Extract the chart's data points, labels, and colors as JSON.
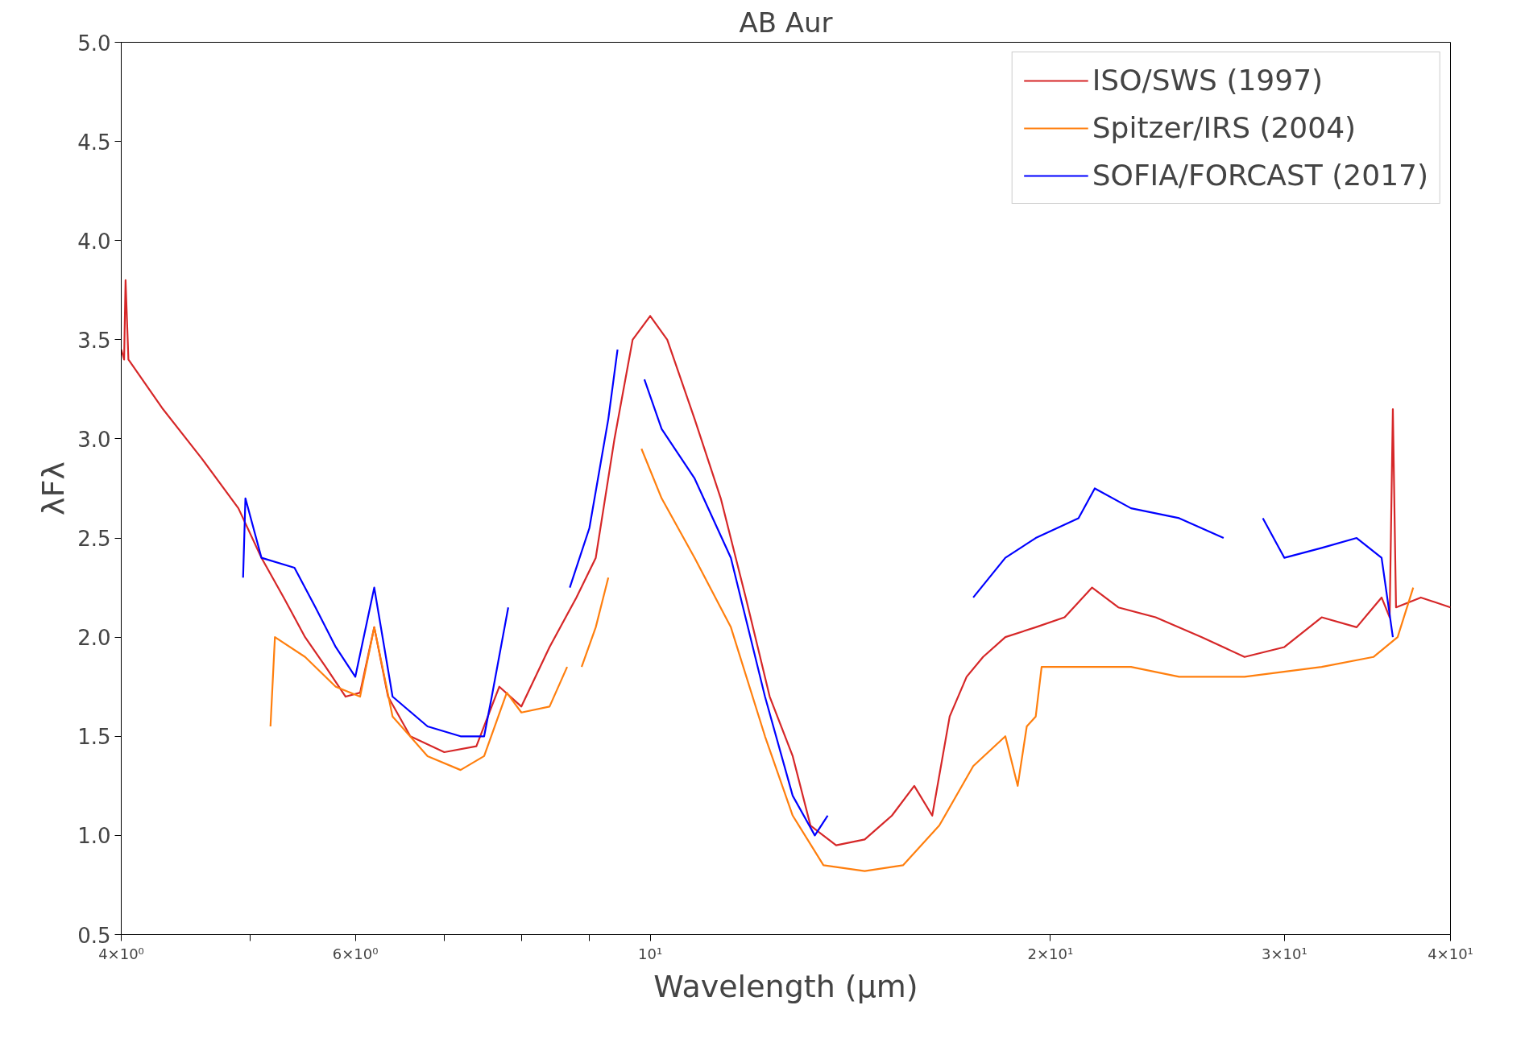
{
  "chart_data": {
    "type": "line",
    "title": "AB Aur",
    "xlabel": "Wavelength (μm)",
    "ylabel": "λFλ",
    "log": "x",
    "legend": "top right",
    "grid": false,
    "marker": "none",
    "line_style": "solid",
    "xlim": [
      4,
      40
    ],
    "ylim": [
      0.5,
      5.0
    ],
    "xticks": [
      {
        "value": 4,
        "label": "4×10⁰"
      },
      {
        "value": 5,
        "label": null
      },
      {
        "value": 6,
        "label": "6×10⁰"
      },
      {
        "value": 7,
        "label": null
      },
      {
        "value": 8,
        "label": null
      },
      {
        "value": 9,
        "label": null
      },
      {
        "value": 10,
        "label": "10¹"
      },
      {
        "value": 20,
        "label": "2×10¹"
      },
      {
        "value": 30,
        "label": "3×10¹"
      },
      {
        "value": 40,
        "label": "4×10¹"
      }
    ],
    "yticks": [
      {
        "value": 0.5,
        "label": "0.5"
      },
      {
        "value": 1.0,
        "label": "1.0"
      },
      {
        "value": 1.5,
        "label": "1.5"
      },
      {
        "value": 2.0,
        "label": "2.0"
      },
      {
        "value": 2.5,
        "label": "2.5"
      },
      {
        "value": 3.0,
        "label": "3.0"
      },
      {
        "value": 3.5,
        "label": "3.5"
      },
      {
        "value": 4.0,
        "label": "4.0"
      },
      {
        "value": 4.5,
        "label": "4.5"
      },
      {
        "value": 5.0,
        "label": "5.0"
      }
    ],
    "series": [
      {
        "name": "ISO/SWS (1997)",
        "color": "#d62728",
        "x": [
          4.0,
          4.02,
          4.03,
          4.05,
          4.3,
          4.6,
          4.9,
          5.1,
          5.3,
          5.5,
          5.7,
          5.9,
          6.05,
          6.2,
          6.35,
          6.6,
          7.0,
          7.4,
          7.7,
          8.0,
          8.4,
          8.8,
          9.1,
          9.4,
          9.7,
          10.0,
          10.3,
          10.8,
          11.3,
          11.8,
          12.3,
          12.8,
          13.2,
          13.8,
          14.5,
          15.2,
          15.8,
          16.3,
          16.8,
          17.3,
          17.8,
          18.5,
          19.5,
          20.5,
          21.5,
          22.5,
          24,
          26,
          28,
          30,
          32,
          34,
          35.5,
          36.0,
          36.2,
          36.4,
          38,
          40
        ],
        "values": [
          3.45,
          3.4,
          3.8,
          3.4,
          3.15,
          2.9,
          2.65,
          2.4,
          2.2,
          2.0,
          1.85,
          1.7,
          1.72,
          2.05,
          1.7,
          1.5,
          1.42,
          1.45,
          1.75,
          1.65,
          1.95,
          2.2,
          2.4,
          3.0,
          3.5,
          3.62,
          3.5,
          3.1,
          2.7,
          2.2,
          1.7,
          1.4,
          1.05,
          0.95,
          0.98,
          1.1,
          1.25,
          1.1,
          1.6,
          1.8,
          1.9,
          2.0,
          2.05,
          2.1,
          2.25,
          2.15,
          2.1,
          2.0,
          1.9,
          1.95,
          2.1,
          2.05,
          2.2,
          2.1,
          3.15,
          2.15,
          2.2,
          2.15
        ]
      },
      {
        "name": "Spitzer/IRS (2004)",
        "color": "#ff7f0e",
        "x": [
          5.18,
          5.22,
          5.5,
          5.8,
          6.05,
          6.2,
          6.4,
          6.8,
          7.2,
          7.5,
          7.8,
          8.0,
          8.4,
          8.66,
          8.77,
          8.88,
          9.1,
          9.3,
          9.6,
          9.85,
          10.2,
          10.8,
          11.5,
          12.2,
          12.8,
          13.5,
          14.5,
          15.5,
          16.5,
          17.5,
          18.5,
          18.9,
          19.2,
          19.5,
          19.7,
          21,
          23,
          25,
          28,
          32,
          35,
          36.5,
          37.5
        ],
        "values": [
          1.55,
          2.0,
          1.9,
          1.75,
          1.7,
          2.05,
          1.6,
          1.4,
          1.33,
          1.4,
          1.72,
          1.62,
          1.65,
          1.85,
          null,
          1.85,
          2.05,
          2.3,
          null,
          2.95,
          2.7,
          2.4,
          2.05,
          1.5,
          1.1,
          0.85,
          0.82,
          0.85,
          1.05,
          1.35,
          1.5,
          1.25,
          1.55,
          1.6,
          1.85,
          1.85,
          1.85,
          1.8,
          1.8,
          1.85,
          1.9,
          2.0,
          2.25
        ]
      },
      {
        "name": "SOFIA/FORCAST (2017)",
        "color": "#0000ff",
        "x": [
          4.94,
          4.96,
          5.1,
          5.4,
          5.6,
          5.8,
          6.0,
          6.2,
          6.4,
          6.8,
          7.2,
          7.5,
          7.6,
          7.82,
          8.2,
          8.7,
          9.0,
          9.3,
          9.45,
          9.7,
          9.9,
          10.2,
          10.8,
          11.5,
          12.2,
          12.8,
          13.3,
          13.6,
          15.5,
          17.5,
          18.5,
          19.5,
          21,
          21.6,
          23,
          25,
          27,
          28,
          28.9,
          30,
          32,
          34,
          35.5,
          36.2
        ],
        "values": [
          2.3,
          2.7,
          2.4,
          2.35,
          2.15,
          1.95,
          1.8,
          2.25,
          1.7,
          1.55,
          1.5,
          1.5,
          1.7,
          2.15,
          null,
          2.25,
          2.55,
          3.1,
          3.45,
          null,
          3.3,
          3.05,
          2.8,
          2.4,
          1.7,
          1.2,
          1.0,
          1.1,
          null,
          2.2,
          2.4,
          2.5,
          2.6,
          2.75,
          2.65,
          2.6,
          2.5,
          null,
          2.6,
          2.4,
          2.45,
          2.5,
          2.4,
          2.0
        ]
      }
    ]
  }
}
